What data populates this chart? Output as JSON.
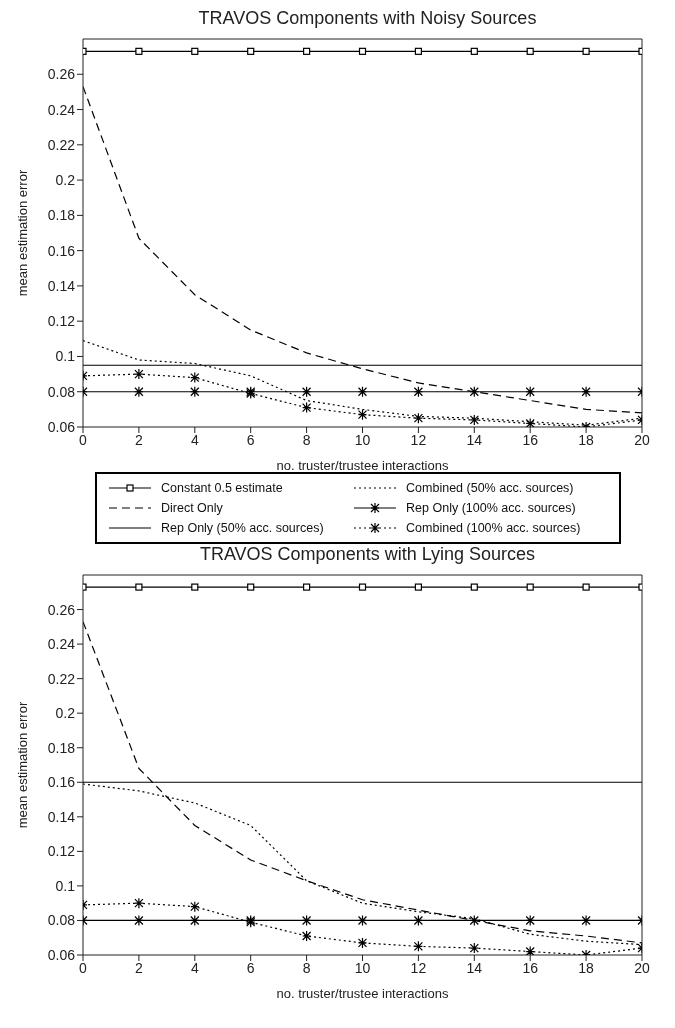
{
  "chart_data": [
    {
      "type": "line",
      "title": "TRAVOS Components with Noisy Sources",
      "xlabel": "no. truster/trustee interactions",
      "ylabel": "mean estimation error",
      "x": [
        0,
        2,
        4,
        6,
        8,
        10,
        12,
        14,
        16,
        18,
        20
      ],
      "xlim": [
        0,
        20
      ],
      "xticks": [
        0,
        2,
        4,
        6,
        8,
        10,
        12,
        14,
        16,
        18,
        20
      ],
      "ylim": [
        0.06,
        0.28
      ],
      "yticks": [
        0.06,
        0.08,
        0.1,
        0.12,
        0.14,
        0.16,
        0.18,
        0.2,
        0.22,
        0.24,
        0.26
      ],
      "legend": "bottom",
      "series": [
        {
          "name": "Constant 0.5 estimate",
          "color": "#000000",
          "marker": "square",
          "line_style": "solid",
          "values": [
            0.273,
            0.273,
            0.273,
            0.273,
            0.273,
            0.273,
            0.273,
            0.273,
            0.273,
            0.273,
            0.273
          ]
        },
        {
          "name": "Direct Only",
          "color": "#000000",
          "marker": "none",
          "line_style": "dashed",
          "values": [
            0.253,
            0.167,
            0.135,
            0.115,
            0.102,
            0.093,
            0.085,
            0.08,
            0.075,
            0.07,
            0.068
          ]
        },
        {
          "name": "Rep Only (50% acc. sources)",
          "color": "#000000",
          "marker": "none",
          "line_style": "solid",
          "values": [
            0.095,
            0.095,
            0.095,
            0.095,
            0.095,
            0.095,
            0.095,
            0.095,
            0.095,
            0.095,
            0.095
          ]
        },
        {
          "name": "Combined (50% acc. sources)",
          "color": "#000000",
          "marker": "none",
          "line_style": "dotted",
          "values": [
            0.109,
            0.098,
            0.096,
            0.089,
            0.075,
            0.07,
            0.066,
            0.065,
            0.063,
            0.061,
            0.065
          ]
        },
        {
          "name": "Rep Only (100% acc. sources)",
          "color": "#000000",
          "marker": "cross",
          "line_style": "solid",
          "values": [
            0.08,
            0.08,
            0.08,
            0.08,
            0.08,
            0.08,
            0.08,
            0.08,
            0.08,
            0.08,
            0.08
          ]
        },
        {
          "name": "Combined (100% acc. sources)",
          "color": "#000000",
          "marker": "cross",
          "line_style": "dotted",
          "values": [
            0.089,
            0.09,
            0.088,
            0.079,
            0.071,
            0.067,
            0.065,
            0.064,
            0.062,
            0.06,
            0.064
          ]
        }
      ]
    },
    {
      "type": "line",
      "title": "TRAVOS Components with Lying Sources",
      "xlabel": "no. truster/trustee interactions",
      "ylabel": "mean estimation error",
      "x": [
        0,
        2,
        4,
        6,
        8,
        10,
        12,
        14,
        16,
        18,
        20
      ],
      "xlim": [
        0,
        20
      ],
      "xticks": [
        0,
        2,
        4,
        6,
        8,
        10,
        12,
        14,
        16,
        18,
        20
      ],
      "ylim": [
        0.06,
        0.28
      ],
      "yticks": [
        0.06,
        0.08,
        0.1,
        0.12,
        0.14,
        0.16,
        0.18,
        0.2,
        0.22,
        0.24,
        0.26
      ],
      "series": [
        {
          "color": "#000000",
          "marker": "square",
          "line_style": "solid",
          "values": [
            0.273,
            0.273,
            0.273,
            0.273,
            0.273,
            0.273,
            0.273,
            0.273,
            0.273,
            0.273,
            0.273
          ]
        },
        {
          "color": "#000000",
          "marker": "none",
          "line_style": "dashed",
          "values": [
            0.253,
            0.168,
            0.135,
            0.115,
            0.103,
            0.092,
            0.086,
            0.08,
            0.074,
            0.071,
            0.067
          ]
        },
        {
          "color": "#000000",
          "marker": "none",
          "line_style": "solid",
          "values": [
            0.16,
            0.16,
            0.16,
            0.16,
            0.16,
            0.16,
            0.16,
            0.16,
            0.16,
            0.16,
            0.16
          ]
        },
        {
          "color": "#000000",
          "marker": "none",
          "line_style": "dotted",
          "values": [
            0.159,
            0.155,
            0.148,
            0.135,
            0.103,
            0.09,
            0.085,
            0.081,
            0.072,
            0.068,
            0.066
          ]
        },
        {
          "color": "#000000",
          "marker": "cross",
          "line_style": "solid",
          "values": [
            0.08,
            0.08,
            0.08,
            0.08,
            0.08,
            0.08,
            0.08,
            0.08,
            0.08,
            0.08,
            0.08
          ]
        },
        {
          "color": "#000000",
          "marker": "cross",
          "line_style": "dotted",
          "values": [
            0.089,
            0.09,
            0.088,
            0.079,
            0.071,
            0.067,
            0.065,
            0.064,
            0.062,
            0.06,
            0.064
          ]
        }
      ]
    }
  ]
}
